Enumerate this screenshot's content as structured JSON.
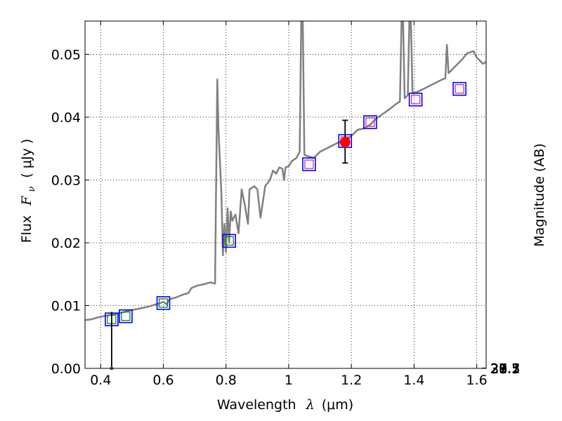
{
  "chart_data": {
    "type": "line",
    "xlabel": {
      "prefix": "Wavelength",
      "symbol": "λ",
      "unit": "(μm)"
    },
    "ylabel": {
      "prefix": "Flux",
      "symbol": "F",
      "subscript": "ν",
      "unit": "( μJy )"
    },
    "y2label": "Magnitude (AB)",
    "xlim": [
      0.35,
      1.63
    ],
    "ylim": [
      0.0,
      0.0553
    ],
    "grid": true,
    "x_ticks": [
      0.4,
      0.6,
      0.8,
      1.0,
      1.2,
      1.4,
      1.6
    ],
    "x_tick_labels": [
      "0.4",
      "0.6",
      "0.8",
      "1",
      "1.2",
      "1.4",
      "1.6"
    ],
    "y_ticks": [
      0.0,
      0.01,
      0.02,
      0.03,
      0.04,
      0.05
    ],
    "y_tick_labels": [
      "0.00",
      "0.01",
      "0.02",
      "0.03",
      "0.04",
      "0.05"
    ],
    "mag_ticks": [
      27.1,
      27.3,
      27.5,
      27.7,
      28,
      28.2,
      28.5,
      29,
      29.5,
      30,
      31
    ],
    "mag_tick_labels": [
      "27.1",
      "27.3",
      "27.5",
      "27.7",
      "28",
      "28.2",
      "28.5",
      "29",
      "29.5",
      "30",
      "31"
    ],
    "colors": {
      "model": "#808080",
      "model_photometry": "#0000ff",
      "observed_marker": "#ff0000",
      "green_marker": "#008000",
      "pink_marker": "#d0208a",
      "errorbar": "#000000",
      "grid": "#888888"
    },
    "series": [
      {
        "name": "model spectrum",
        "style": "line",
        "points": [
          [
            0.35,
            0.0077
          ],
          [
            0.37,
            0.0078
          ],
          [
            0.39,
            0.0081
          ],
          [
            0.41,
            0.0083
          ],
          [
            0.43,
            0.0085
          ],
          [
            0.45,
            0.0087
          ],
          [
            0.47,
            0.0089
          ],
          [
            0.49,
            0.0092
          ],
          [
            0.51,
            0.0094
          ],
          [
            0.53,
            0.0096
          ],
          [
            0.55,
            0.0098
          ],
          [
            0.57,
            0.0101
          ],
          [
            0.59,
            0.0104
          ],
          [
            0.6,
            0.0106
          ],
          [
            0.61,
            0.0102
          ],
          [
            0.62,
            0.011
          ],
          [
            0.64,
            0.0113
          ],
          [
            0.66,
            0.0117
          ],
          [
            0.68,
            0.012
          ],
          [
            0.69,
            0.0128
          ],
          [
            0.71,
            0.0132
          ],
          [
            0.73,
            0.0134
          ],
          [
            0.75,
            0.0137
          ],
          [
            0.765,
            0.0135
          ],
          [
            0.772,
            0.046
          ],
          [
            0.776,
            0.038
          ],
          [
            0.785,
            0.028
          ],
          [
            0.79,
            0.018
          ],
          [
            0.795,
            0.023
          ],
          [
            0.8,
            0.0185
          ],
          [
            0.805,
            0.0255
          ],
          [
            0.81,
            0.02
          ],
          [
            0.815,
            0.025
          ],
          [
            0.82,
            0.0235
          ],
          [
            0.83,
            0.0245
          ],
          [
            0.84,
            0.0215
          ],
          [
            0.85,
            0.0285
          ],
          [
            0.86,
            0.026
          ],
          [
            0.87,
            0.023
          ],
          [
            0.875,
            0.0285
          ],
          [
            0.89,
            0.029
          ],
          [
            0.9,
            0.0285
          ],
          [
            0.91,
            0.024
          ],
          [
            0.925,
            0.029
          ],
          [
            0.94,
            0.03
          ],
          [
            0.95,
            0.0315
          ],
          [
            0.96,
            0.031
          ],
          [
            0.97,
            0.032
          ],
          [
            0.98,
            0.0318
          ],
          [
            0.985,
            0.03
          ],
          [
            0.99,
            0.032
          ],
          [
            1.0,
            0.0322
          ],
          [
            1.01,
            0.033
          ],
          [
            1.025,
            0.0335
          ],
          [
            1.035,
            0.0345
          ],
          [
            1.04,
            0.0553
          ],
          [
            1.045,
            0.0553
          ],
          [
            1.05,
            0.034
          ],
          [
            1.06,
            0.0338
          ],
          [
            1.08,
            0.0335
          ],
          [
            1.1,
            0.0345
          ],
          [
            1.12,
            0.035
          ],
          [
            1.14,
            0.0355
          ],
          [
            1.16,
            0.036
          ],
          [
            1.18,
            0.0363
          ],
          [
            1.2,
            0.037
          ],
          [
            1.22,
            0.038
          ],
          [
            1.24,
            0.0382
          ],
          [
            1.26,
            0.0388
          ],
          [
            1.28,
            0.0398
          ],
          [
            1.3,
            0.0405
          ],
          [
            1.32,
            0.0412
          ],
          [
            1.34,
            0.042
          ],
          [
            1.355,
            0.0425
          ],
          [
            1.36,
            0.0553
          ],
          [
            1.365,
            0.0553
          ],
          [
            1.37,
            0.043
          ],
          [
            1.38,
            0.0435
          ],
          [
            1.385,
            0.0553
          ],
          [
            1.39,
            0.0553
          ],
          [
            1.395,
            0.0438
          ],
          [
            1.41,
            0.044
          ],
          [
            1.43,
            0.0445
          ],
          [
            1.45,
            0.045
          ],
          [
            1.47,
            0.0455
          ],
          [
            1.49,
            0.046
          ],
          [
            1.5,
            0.0462
          ],
          [
            1.505,
            0.0515
          ],
          [
            1.51,
            0.047
          ],
          [
            1.53,
            0.048
          ],
          [
            1.55,
            0.049
          ],
          [
            1.57,
            0.0502
          ],
          [
            1.59,
            0.0505
          ],
          [
            1.6,
            0.0495
          ],
          [
            1.62,
            0.0485
          ],
          [
            1.63,
            0.0488
          ]
        ]
      },
      {
        "name": "model photometry",
        "style": "open-square",
        "points": [
          [
            0.435,
            0.0078
          ],
          [
            0.48,
            0.0083
          ],
          [
            0.6,
            0.0104
          ],
          [
            0.81,
            0.0203
          ],
          [
            1.065,
            0.0325
          ],
          [
            1.18,
            0.0362
          ],
          [
            1.26,
            0.0392
          ],
          [
            1.405,
            0.0428
          ],
          [
            1.545,
            0.0445
          ]
        ]
      },
      {
        "name": "observed flux",
        "style": "filled-circle",
        "points": [
          [
            1.18,
            0.036
          ]
        ],
        "error_low": [
          0.0327
        ],
        "error_high": [
          0.0395
        ]
      },
      {
        "name": "upper limit",
        "style": "errorbar",
        "points": [
          [
            0.435,
            0.0
          ]
        ],
        "error_high": [
          0.009
        ]
      }
    ]
  }
}
